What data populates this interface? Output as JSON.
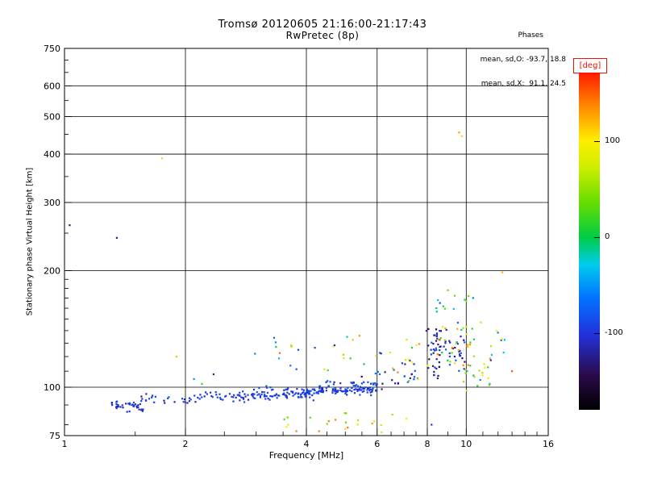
{
  "chart_data": {
    "type": "scatter",
    "title": "Tromsø 20120605 21:16:00-21:17:43",
    "subtitle": "RwPretec (8p)",
    "annotation": {
      "header": "Phases",
      "line_o": "mean, sd,O: -93.7, 18.8",
      "line_x": "mean, sd,X:  91.1, 24.5"
    },
    "xlabel": "Frequency [MHz]",
    "ylabel": "Stationary phase Virtual Height [km]",
    "xscale": "log",
    "xlim": [
      1,
      16
    ],
    "xticks": [
      1,
      2,
      4,
      6,
      8,
      10,
      16
    ],
    "x_gridlines": [
      2,
      4,
      6,
      8,
      10
    ],
    "x_minor_ticks": [
      1.5,
      2.5,
      3,
      3.5,
      4.5,
      5,
      5.5,
      6.5,
      7,
      7.5,
      9,
      11,
      12,
      13,
      14,
      15
    ],
    "yscale": "log",
    "ylim": [
      75,
      750
    ],
    "yticks": [
      75,
      100,
      200,
      300,
      400,
      500,
      600,
      750
    ],
    "y_gridlines": [
      100,
      200,
      300,
      400,
      500,
      600
    ],
    "y_minor_ticks": [
      80,
      90,
      110,
      120,
      130,
      140,
      150,
      160,
      170,
      180,
      190,
      250,
      350,
      450,
      550,
      650,
      700
    ],
    "grid": true,
    "colorbar": {
      "label": "[deg]",
      "range": [
        -180,
        180
      ],
      "ticks": [
        100,
        0,
        -100
      ],
      "stops": [
        {
          "t": 0.0,
          "c": "#000000"
        },
        {
          "t": 0.1,
          "c": "#2a0a4a"
        },
        {
          "t": 0.22,
          "c": "#2233dd"
        },
        {
          "t": 0.33,
          "c": "#0077ff"
        },
        {
          "t": 0.42,
          "c": "#00ccee"
        },
        {
          "t": 0.5,
          "c": "#00cc44"
        },
        {
          "t": 0.6,
          "c": "#66dd00"
        },
        {
          "t": 0.7,
          "c": "#ccee00"
        },
        {
          "t": 0.78,
          "c": "#ffee00"
        },
        {
          "t": 0.88,
          "c": "#ff8800"
        },
        {
          "t": 1.0,
          "c": "#ff0000"
        }
      ]
    },
    "color_variable": "phase_deg",
    "points": [
      [
        1.75,
        390,
        80
      ],
      [
        1.35,
        243,
        -120
      ],
      [
        1.03,
        262,
        -130
      ],
      [
        9.6,
        455,
        130
      ],
      [
        9.75,
        445,
        110
      ],
      [
        12.3,
        198,
        120
      ],
      [
        6.55,
        85,
        60
      ],
      [
        7.1,
        83,
        100
      ],
      [
        8.2,
        80,
        -100
      ],
      [
        5.0,
        78,
        110
      ],
      [
        4.3,
        77,
        140
      ],
      [
        3.6,
        80,
        90
      ],
      [
        10.4,
        170,
        -60
      ],
      [
        9.0,
        178,
        40
      ],
      [
        8.6,
        165,
        -90
      ],
      [
        11.9,
        140,
        100
      ],
      [
        13.0,
        110,
        150
      ],
      [
        2.35,
        108,
        -120
      ],
      [
        1.9,
        120,
        60
      ],
      [
        2.1,
        105,
        -50
      ],
      [
        2.2,
        102,
        20
      ]
    ],
    "clusters": [
      {
        "f": [
          1.3,
          1.58
        ],
        "h": [
          86,
          93
        ],
        "deg": [
          -120,
          -85
        ],
        "n": 40
      },
      {
        "f": [
          1.55,
          2.15
        ],
        "h": [
          89,
          97
        ],
        "deg": [
          -125,
          -80
        ],
        "n": 26
      },
      {
        "f": [
          2.1,
          3.0
        ],
        "h": [
          91,
          99
        ],
        "deg": [
          -115,
          -80
        ],
        "n": 40
      },
      {
        "f": [
          2.5,
          4.0
        ],
        "h": [
          93,
          97
        ],
        "deg": [
          -110,
          -85
        ],
        "n": 40
      },
      {
        "f": [
          3.0,
          4.3
        ],
        "h": [
          92,
          101
        ],
        "deg": [
          -110,
          -80
        ],
        "n": 55
      },
      {
        "f": [
          4.0,
          6.0
        ],
        "h": [
          96,
          100
        ],
        "deg": [
          -105,
          -85
        ],
        "n": 60
      },
      {
        "f": [
          4.3,
          6.0
        ],
        "h": [
          95,
          105
        ],
        "deg": [
          -115,
          -75
        ],
        "n": 70
      },
      {
        "f": [
          2.9,
          6.2
        ],
        "h": [
          104,
          142
        ],
        "deg": [
          -150,
          150
        ],
        "n": 28
      },
      {
        "f": [
          3.2,
          6.6
        ],
        "h": [
          76,
          88
        ],
        "deg": [
          20,
          150
        ],
        "n": 18
      },
      {
        "f": [
          6.0,
          7.6
        ],
        "h": [
          95,
          118
        ],
        "deg": [
          -130,
          -60
        ],
        "n": 24
      },
      {
        "f": [
          6.2,
          7.8
        ],
        "h": [
          100,
          135
        ],
        "deg": [
          0,
          150
        ],
        "n": 12
      },
      {
        "f": [
          8.25,
          8.6
        ],
        "h": [
          100,
          145
        ],
        "deg": [
          -140,
          -90
        ],
        "n": 22
      },
      {
        "f": [
          7.9,
          9.9
        ],
        "h": [
          105,
          150
        ],
        "deg": [
          -150,
          -70
        ],
        "n": 48
      },
      {
        "f": [
          8.0,
          10.6
        ],
        "h": [
          100,
          150
        ],
        "deg": [
          -20,
          150
        ],
        "n": 32
      },
      {
        "f": [
          8.4,
          10.2
        ],
        "h": [
          150,
          185
        ],
        "deg": [
          -80,
          120
        ],
        "n": 10
      },
      {
        "f": [
          9.8,
          11.6
        ],
        "h": [
          92,
          125
        ],
        "deg": [
          -140,
          140
        ],
        "n": 22
      },
      {
        "f": [
          10.8,
          12.6
        ],
        "h": [
          100,
          160
        ],
        "deg": [
          -120,
          140
        ],
        "n": 8
      }
    ]
  }
}
